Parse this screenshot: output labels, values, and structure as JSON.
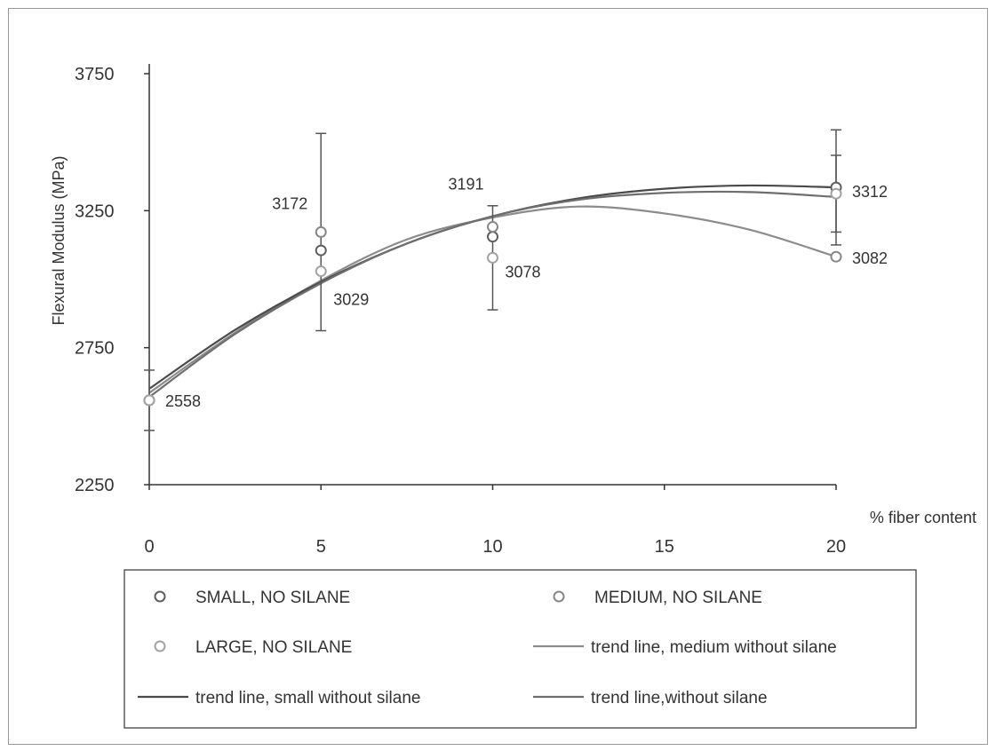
{
  "chart_data": {
    "type": "scatter",
    "xlabel": "% fiber content",
    "ylabel": "Flexural Modulus (MPa)",
    "xlim": [
      0,
      20
    ],
    "ylim": [
      2250,
      3750
    ],
    "x_ticks": [
      0,
      5,
      10,
      15,
      20
    ],
    "y_ticks": [
      2250,
      2750,
      3250,
      3750
    ],
    "grid": false,
    "legend_position": "bottom",
    "series": [
      {
        "name": "SMALL, NO SILANE",
        "kind": "points",
        "color": "#5e5e5e",
        "x": [
          0,
          5,
          10,
          20
        ],
        "y": [
          2558,
          3105,
          3155,
          3335
        ],
        "error": [
          110,
          0,
          0,
          210
        ]
      },
      {
        "name": "MEDIUM, NO SILANE",
        "kind": "points",
        "color": "#878787",
        "x": [
          0,
          5,
          10,
          20
        ],
        "y": [
          2558,
          3172,
          3191,
          3082
        ],
        "error": [
          0,
          360,
          0,
          0
        ]
      },
      {
        "name": "LARGE, NO SILANE",
        "kind": "points",
        "color": "#a2a2a2",
        "x": [
          0,
          5,
          10,
          20
        ],
        "y": [
          2558,
          3029,
          3078,
          3312
        ],
        "error": [
          0,
          0,
          190,
          140
        ]
      },
      {
        "name": "trend line, medium without silane",
        "kind": "line",
        "color": "#8c8c8c",
        "x": [
          0,
          2.5,
          5,
          7.5,
          10,
          12.5,
          15,
          17.5,
          20
        ],
        "y": [
          2585,
          2805,
          2995,
          3145,
          3225,
          3265,
          3240,
          3180,
          3082
        ]
      },
      {
        "name": "trend line, small without silane",
        "kind": "line",
        "color": "#4a4a4a",
        "x": [
          0,
          2.5,
          5,
          7.5,
          10,
          12.5,
          15,
          17.5,
          20
        ],
        "y": [
          2600,
          2815,
          2990,
          3130,
          3230,
          3295,
          3330,
          3342,
          3335
        ]
      },
      {
        "name": "trend line,without silane",
        "kind": "line",
        "color": "#6e6e6e",
        "x": [
          0,
          2.5,
          5,
          7.5,
          10,
          12.5,
          15,
          17.5,
          20
        ],
        "y": [
          2570,
          2800,
          2985,
          3130,
          3230,
          3290,
          3315,
          3318,
          3300
        ]
      }
    ],
    "annotations": [
      {
        "text": "2558",
        "x": 0,
        "y": 2558,
        "dx": 18,
        "dy": 7
      },
      {
        "text": "3172",
        "x": 5,
        "y": 3172,
        "dx": -55,
        "dy": -26
      },
      {
        "text": "3029",
        "x": 5,
        "y": 3029,
        "dx": 14,
        "dy": 38
      },
      {
        "text": "3191",
        "x": 10,
        "y": 3191,
        "dx": -50,
        "dy": -42
      },
      {
        "text": "3078",
        "x": 10,
        "y": 3078,
        "dx": 14,
        "dy": 22
      },
      {
        "text": "3312",
        "x": 20,
        "y": 3312,
        "dx": 18,
        "dy": 4
      },
      {
        "text": "3082",
        "x": 20,
        "y": 3082,
        "dx": 18,
        "dy": 8
      }
    ]
  }
}
